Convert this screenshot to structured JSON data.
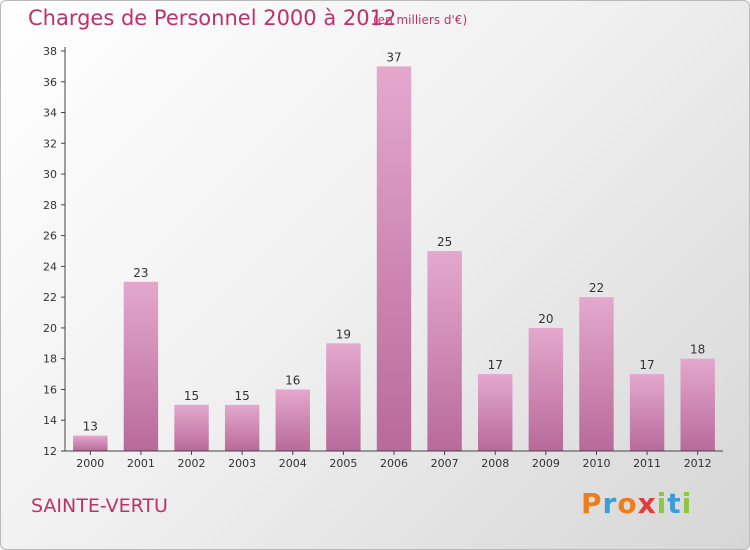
{
  "title": "Charges de Personnel 2000 à 2012",
  "subtitle": "(en milliers d'€)",
  "city": "SAINTE-VERTU",
  "logo": [
    "P",
    "r",
    "o",
    "x",
    "i",
    "t",
    "i"
  ],
  "colors": {
    "accent": "#c0306a",
    "bar_top": "#e4a8cd",
    "bar_bottom": "#b86a9a",
    "axis": "#444444"
  },
  "chart_data": {
    "type": "bar",
    "categories": [
      "2000",
      "2001",
      "2002",
      "2003",
      "2004",
      "2005",
      "2006",
      "2007",
      "2008",
      "2009",
      "2010",
      "2011",
      "2012"
    ],
    "values": [
      13,
      23,
      15,
      15,
      16,
      19,
      37,
      25,
      17,
      20,
      22,
      17,
      18
    ],
    "title": "Charges de Personnel 2000 à 2012",
    "xlabel": "",
    "ylabel": "",
    "ylim": [
      12,
      38
    ],
    "yticks": [
      12,
      14,
      16,
      18,
      20,
      22,
      24,
      26,
      28,
      30,
      32,
      34,
      36,
      38
    ],
    "grid": false,
    "data_labels": true
  }
}
